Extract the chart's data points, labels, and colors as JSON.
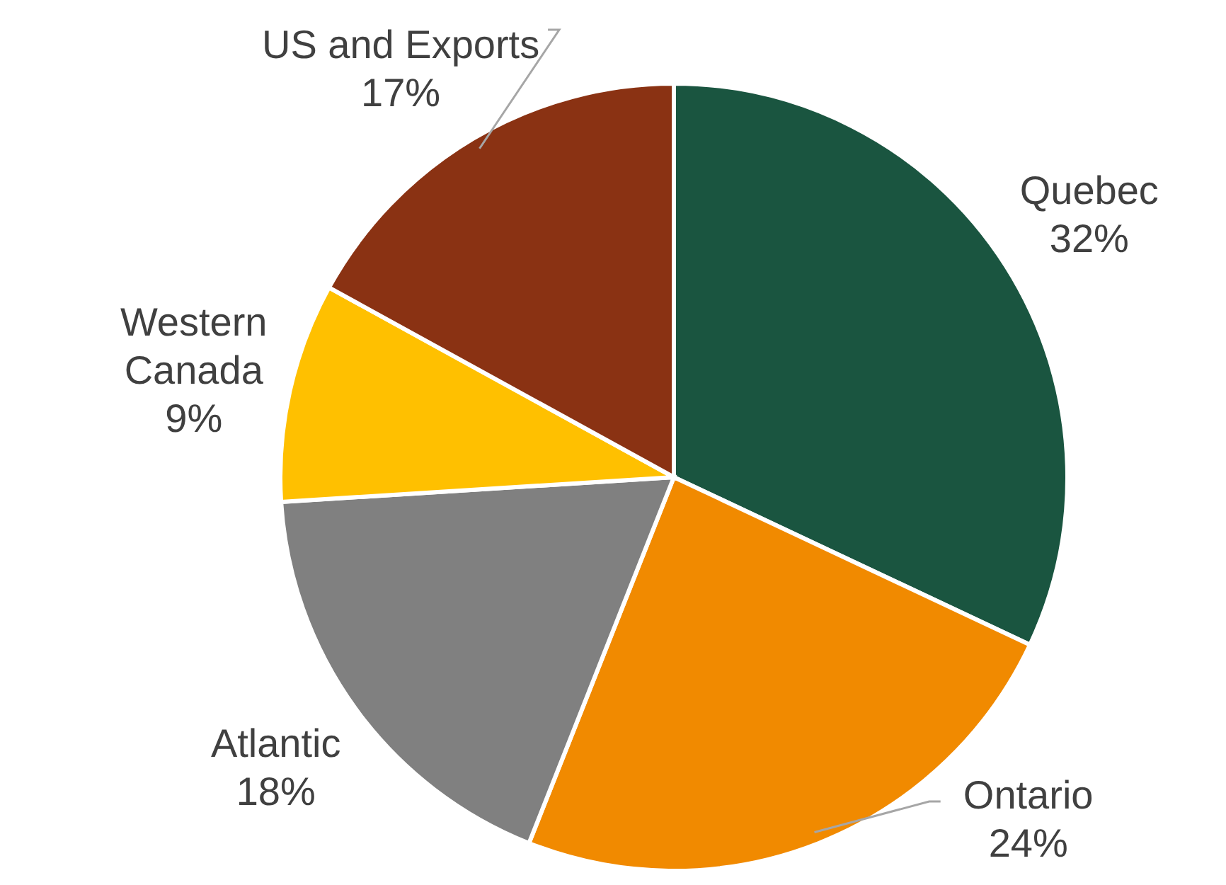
{
  "chart_data": {
    "type": "pie",
    "categories": [
      "Quebec",
      "Ontario",
      "Atlantic",
      "Western Canada",
      "US and Exports"
    ],
    "values": [
      32,
      24,
      18,
      9,
      17
    ],
    "value_labels": [
      "32%",
      "24%",
      "18%",
      "9%",
      "17%"
    ],
    "colors": [
      "#1a5540",
      "#f18a00",
      "#808080",
      "#ffc000",
      "#8a3213"
    ]
  }
}
